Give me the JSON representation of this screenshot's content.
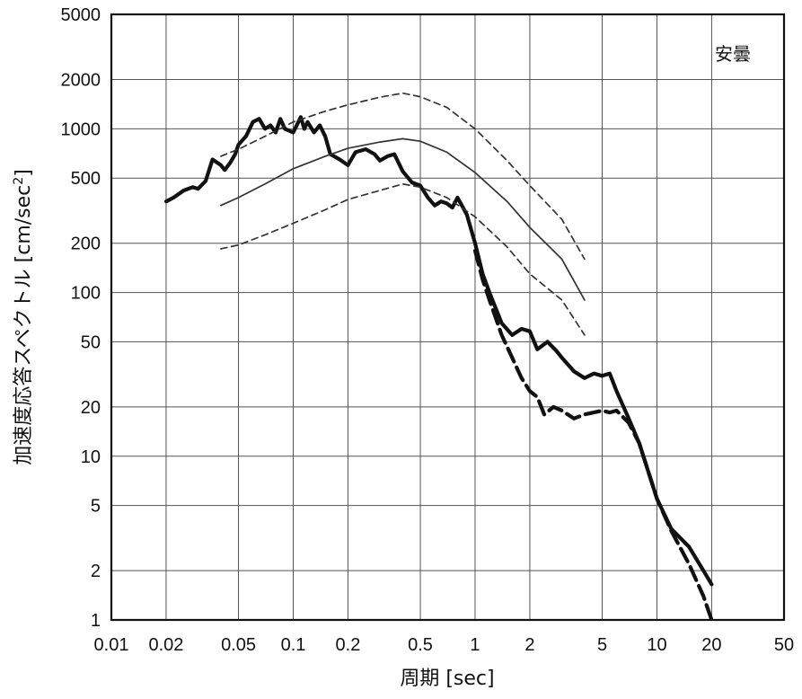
{
  "chart_data": {
    "type": "line",
    "title": "",
    "annotation": "安曇",
    "xlabel": "周期 [sec]",
    "ylabel_main": "加速度応答スペクトル [cm/sec",
    "ylabel_sup": "2",
    "ylabel_close": "]",
    "x_scale": "log",
    "y_scale": "log",
    "xlim": [
      0.01,
      50
    ],
    "ylim": [
      1,
      5000
    ],
    "grid": true,
    "legend": "none",
    "x_ticks": [
      {
        "v": 0.01,
        "label": "0.01"
      },
      {
        "v": 0.02,
        "label": "0.02"
      },
      {
        "v": 0.05,
        "label": "0.05"
      },
      {
        "v": 0.1,
        "label": "0.1"
      },
      {
        "v": 0.2,
        "label": "0.2"
      },
      {
        "v": 0.5,
        "label": "0.5"
      },
      {
        "v": 1,
        "label": "1"
      },
      {
        "v": 2,
        "label": "2"
      },
      {
        "v": 5,
        "label": "5"
      },
      {
        "v": 10,
        "label": "10"
      },
      {
        "v": 20,
        "label": "20"
      },
      {
        "v": 50,
        "label": "50"
      }
    ],
    "y_ticks": [
      {
        "v": 1,
        "label": "1"
      },
      {
        "v": 2,
        "label": "2"
      },
      {
        "v": 5,
        "label": "5"
      },
      {
        "v": 10,
        "label": "10"
      },
      {
        "v": 20,
        "label": "20"
      },
      {
        "v": 50,
        "label": "50"
      },
      {
        "v": 100,
        "label": "100"
      },
      {
        "v": 200,
        "label": "200"
      },
      {
        "v": 500,
        "label": "500"
      },
      {
        "v": 1000,
        "label": "1000"
      },
      {
        "v": 2000,
        "label": "2000"
      },
      {
        "v": 5000,
        "label": "5000"
      }
    ],
    "series": [
      {
        "style": "thick-solid",
        "color": "#111111",
        "x": [
          0.02,
          0.022,
          0.025,
          0.028,
          0.03,
          0.033,
          0.036,
          0.04,
          0.042,
          0.045,
          0.048,
          0.05,
          0.055,
          0.06,
          0.065,
          0.07,
          0.075,
          0.08,
          0.085,
          0.09,
          0.1,
          0.11,
          0.115,
          0.12,
          0.13,
          0.14,
          0.15,
          0.16,
          0.18,
          0.2,
          0.22,
          0.25,
          0.28,
          0.3,
          0.33,
          0.36,
          0.4,
          0.45,
          0.5,
          0.55,
          0.6,
          0.65,
          0.7,
          0.75,
          0.8,
          0.9,
          1.0,
          1.1,
          1.2,
          1.4,
          1.6,
          1.8,
          2.0,
          2.2,
          2.5,
          2.8,
          3.0,
          3.5,
          4.0,
          4.5,
          5.0,
          5.5,
          6.0,
          7.0,
          8.0,
          10,
          12,
          15,
          18,
          20
        ],
        "y": [
          360,
          380,
          420,
          440,
          430,
          480,
          650,
          600,
          560,
          620,
          700,
          800,
          900,
          1100,
          1150,
          1000,
          1050,
          950,
          1150,
          1000,
          950,
          1180,
          1000,
          1100,
          950,
          1050,
          900,
          700,
          650,
          600,
          720,
          750,
          700,
          640,
          680,
          700,
          550,
          470,
          450,
          380,
          340,
          360,
          350,
          330,
          380,
          300,
          200,
          130,
          100,
          65,
          55,
          60,
          58,
          45,
          50,
          44,
          40,
          33,
          30,
          32,
          31,
          32,
          25,
          17,
          12,
          5.5,
          3.6,
          2.8,
          2.0,
          1.65
        ]
      },
      {
        "style": "thick-dashed",
        "color": "#111111",
        "x": [
          1.0,
          1.1,
          1.2,
          1.4,
          1.6,
          1.8,
          2.0,
          2.2,
          2.4,
          2.7,
          3.0,
          3.5,
          4.0,
          4.5,
          5.0,
          5.5,
          6.0,
          7.0,
          8.0,
          10,
          12,
          15,
          18,
          20
        ],
        "y": [
          180,
          120,
          90,
          55,
          40,
          30,
          25,
          23,
          18,
          20,
          19,
          17,
          18,
          18.5,
          19,
          18.5,
          19,
          16,
          12,
          5.5,
          3.5,
          2.2,
          1.4,
          1.0
        ]
      },
      {
        "style": "thin-solid",
        "color": "#333333",
        "x": [
          0.04,
          0.05,
          0.07,
          0.1,
          0.15,
          0.2,
          0.3,
          0.4,
          0.5,
          0.7,
          1.0,
          1.5,
          2.0,
          3.0,
          4.0
        ],
        "y": [
          340,
          380,
          460,
          570,
          680,
          760,
          830,
          870,
          840,
          720,
          540,
          360,
          250,
          160,
          90
        ]
      },
      {
        "style": "thin-dashed",
        "color": "#333333",
        "x": [
          0.04,
          0.05,
          0.07,
          0.1,
          0.15,
          0.2,
          0.3,
          0.4,
          0.5,
          0.7,
          1.0,
          1.5,
          2.0,
          3.0,
          4.0
        ],
        "y": [
          680,
          750,
          900,
          1100,
          1280,
          1400,
          1560,
          1650,
          1570,
          1350,
          1000,
          640,
          450,
          280,
          160
        ]
      },
      {
        "style": "thin-dashed",
        "color": "#333333",
        "x": [
          0.04,
          0.05,
          0.07,
          0.1,
          0.15,
          0.2,
          0.3,
          0.4,
          0.5,
          0.7,
          1.0,
          1.5,
          2.0,
          3.0,
          4.0
        ],
        "y": [
          185,
          195,
          225,
          265,
          320,
          370,
          420,
          460,
          440,
          380,
          290,
          190,
          130,
          90,
          55
        ]
      }
    ]
  }
}
